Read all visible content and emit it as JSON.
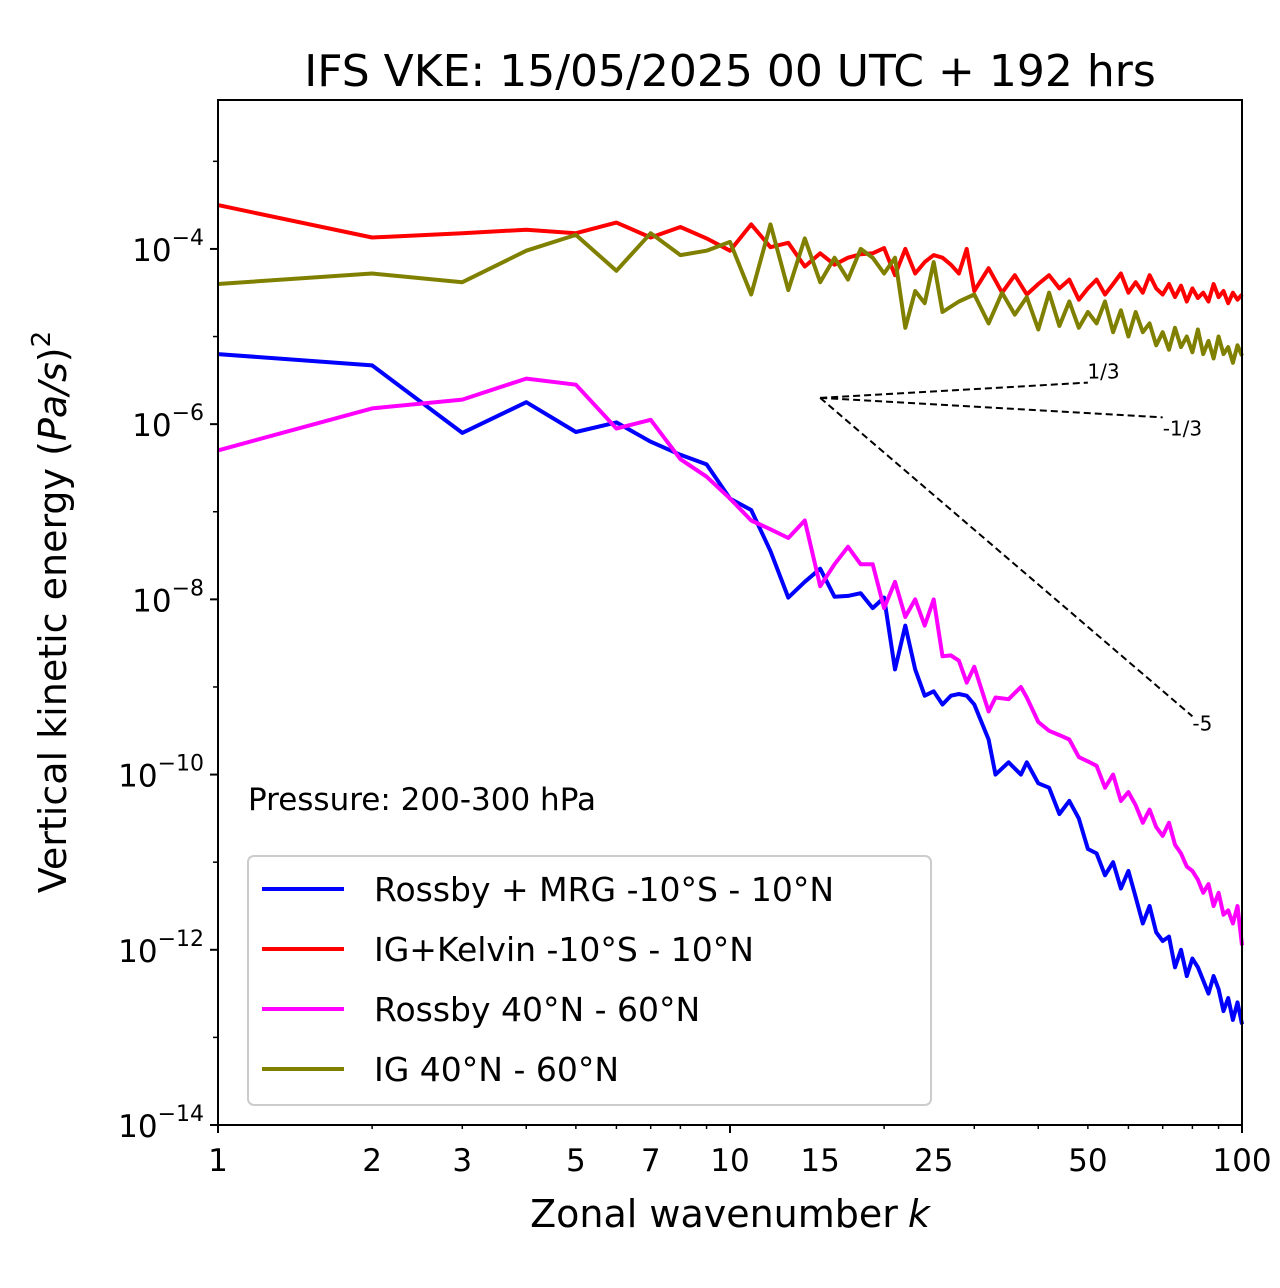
{
  "chart_data": {
    "type": "line",
    "title": "IFS VKE: 15/05/2025 00 UTC + 192 hrs",
    "xlabel": "Zonal wavenumber",
    "xlabel_italic": "k",
    "ylabel_prefix": "Vertical kinetic energy (",
    "ylabel_math": "Pa/s",
    "ylabel_suffix": ")",
    "ylabel_power": "2",
    "xscale": "log",
    "yscale": "log",
    "xlim": [
      1,
      100
    ],
    "ylim_exponent": [
      -14,
      -2.3
    ],
    "x_ticks": [
      "1",
      "2",
      "3",
      "5",
      "7",
      "10",
      "15",
      "25",
      "50",
      "100"
    ],
    "y_ticks": [
      {
        "base": "10",
        "exp": "−4"
      },
      {
        "base": "10",
        "exp": "−6"
      },
      {
        "base": "10",
        "exp": "−8"
      },
      {
        "base": "10",
        "exp": "−10"
      },
      {
        "base": "10",
        "exp": "−12"
      },
      {
        "base": "10",
        "exp": "−14"
      }
    ],
    "annotation": "Pressure: 200-300 hPa",
    "reference_slopes": [
      "1/3",
      "-1/3",
      "-5"
    ],
    "legend_position": "lower-left",
    "series": [
      {
        "name": "Rossby + MRG -10°S - 10°N",
        "color": "#0000ff",
        "points": [
          [
            1,
            -5.2
          ],
          [
            2,
            -5.33
          ],
          [
            3,
            -6.1
          ],
          [
            4,
            -5.75
          ],
          [
            5,
            -6.09
          ],
          [
            6,
            -5.98
          ],
          [
            7,
            -6.2
          ],
          [
            8,
            -6.35
          ],
          [
            9,
            -6.46
          ],
          [
            10,
            -6.85
          ],
          [
            11,
            -6.98
          ],
          [
            12,
            -7.45
          ],
          [
            13,
            -7.98
          ],
          [
            14,
            -7.8
          ],
          [
            15,
            -7.65
          ],
          [
            16,
            -7.97
          ],
          [
            17,
            -7.96
          ],
          [
            18,
            -7.93
          ],
          [
            19,
            -8.1
          ],
          [
            20,
            -7.98
          ],
          [
            21,
            -8.8
          ],
          [
            22,
            -8.3
          ],
          [
            23,
            -8.8
          ],
          [
            24,
            -9.1
          ],
          [
            25,
            -9.05
          ],
          [
            26,
            -9.2
          ],
          [
            27,
            -9.1
          ],
          [
            28,
            -9.08
          ],
          [
            29,
            -9.1
          ],
          [
            30,
            -9.2
          ],
          [
            32,
            -9.6
          ],
          [
            33,
            -10.0
          ],
          [
            35,
            -9.86
          ],
          [
            37,
            -10.0
          ],
          [
            38,
            -9.86
          ],
          [
            40,
            -10.1
          ],
          [
            42,
            -10.15
          ],
          [
            44,
            -10.45
          ],
          [
            46,
            -10.3
          ],
          [
            48,
            -10.5
          ],
          [
            50,
            -10.85
          ],
          [
            52,
            -10.9
          ],
          [
            54,
            -11.15
          ],
          [
            56,
            -11.0
          ],
          [
            58,
            -11.3
          ],
          [
            60,
            -11.1
          ],
          [
            62,
            -11.4
          ],
          [
            64,
            -11.7
          ],
          [
            66,
            -11.5
          ],
          [
            68,
            -11.8
          ],
          [
            70,
            -11.9
          ],
          [
            72,
            -11.85
          ],
          [
            74,
            -12.2
          ],
          [
            76,
            -12.0
          ],
          [
            78,
            -12.3
          ],
          [
            80,
            -12.1
          ],
          [
            82,
            -12.2
          ],
          [
            84,
            -12.35
          ],
          [
            86,
            -12.5
          ],
          [
            88,
            -12.3
          ],
          [
            90,
            -12.45
          ],
          [
            92,
            -12.7
          ],
          [
            94,
            -12.55
          ],
          [
            96,
            -12.8
          ],
          [
            98,
            -12.6
          ],
          [
            100,
            -12.85
          ]
        ]
      },
      {
        "name": "IG+Kelvin -10°S - 10°N",
        "color": "#ff0000",
        "points": [
          [
            1,
            -3.5
          ],
          [
            2,
            -3.87
          ],
          [
            3,
            -3.82
          ],
          [
            4,
            -3.78
          ],
          [
            5,
            -3.82
          ],
          [
            6,
            -3.7
          ],
          [
            7,
            -3.87
          ],
          [
            8,
            -3.75
          ],
          [
            9,
            -3.88
          ],
          [
            10,
            -4.02
          ],
          [
            11,
            -3.72
          ],
          [
            12,
            -3.98
          ],
          [
            13,
            -3.93
          ],
          [
            14,
            -4.2
          ],
          [
            15,
            -4.05
          ],
          [
            16,
            -4.18
          ],
          [
            17,
            -4.1
          ],
          [
            18,
            -4.06
          ],
          [
            19,
            -4.05
          ],
          [
            20,
            -3.99
          ],
          [
            21,
            -4.3
          ],
          [
            22,
            -4.0
          ],
          [
            23,
            -4.28
          ],
          [
            24,
            -4.15
          ],
          [
            25,
            -4.07
          ],
          [
            26,
            -4.1
          ],
          [
            27,
            -4.18
          ],
          [
            28,
            -4.28
          ],
          [
            29,
            -4.0
          ],
          [
            30,
            -4.48
          ],
          [
            32,
            -4.22
          ],
          [
            34,
            -4.5
          ],
          [
            36,
            -4.3
          ],
          [
            38,
            -4.52
          ],
          [
            40,
            -4.4
          ],
          [
            42,
            -4.3
          ],
          [
            44,
            -4.45
          ],
          [
            46,
            -4.35
          ],
          [
            48,
            -4.58
          ],
          [
            50,
            -4.45
          ],
          [
            52,
            -4.35
          ],
          [
            54,
            -4.52
          ],
          [
            56,
            -4.4
          ],
          [
            58,
            -4.28
          ],
          [
            60,
            -4.5
          ],
          [
            62,
            -4.38
          ],
          [
            64,
            -4.5
          ],
          [
            66,
            -4.3
          ],
          [
            68,
            -4.45
          ],
          [
            70,
            -4.52
          ],
          [
            72,
            -4.4
          ],
          [
            74,
            -4.55
          ],
          [
            76,
            -4.42
          ],
          [
            78,
            -4.6
          ],
          [
            80,
            -4.45
          ],
          [
            82,
            -4.56
          ],
          [
            84,
            -4.5
          ],
          [
            86,
            -4.6
          ],
          [
            88,
            -4.4
          ],
          [
            90,
            -4.55
          ],
          [
            92,
            -4.48
          ],
          [
            94,
            -4.62
          ],
          [
            96,
            -4.5
          ],
          [
            98,
            -4.58
          ],
          [
            100,
            -4.52
          ]
        ]
      },
      {
        "name": "Rossby 40°N - 60°N",
        "color": "#ff00ff",
        "points": [
          [
            1,
            -6.3
          ],
          [
            2,
            -5.82
          ],
          [
            3,
            -5.72
          ],
          [
            4,
            -5.48
          ],
          [
            5,
            -5.55
          ],
          [
            6,
            -6.05
          ],
          [
            7,
            -5.95
          ],
          [
            8,
            -6.4
          ],
          [
            9,
            -6.6
          ],
          [
            10,
            -6.85
          ],
          [
            11,
            -7.1
          ],
          [
            12,
            -7.2
          ],
          [
            13,
            -7.3
          ],
          [
            14,
            -7.1
          ],
          [
            15,
            -7.85
          ],
          [
            16,
            -7.6
          ],
          [
            17,
            -7.4
          ],
          [
            18,
            -7.6
          ],
          [
            19,
            -7.6
          ],
          [
            20,
            -8.1
          ],
          [
            21,
            -7.8
          ],
          [
            22,
            -8.2
          ],
          [
            23,
            -8.0
          ],
          [
            24,
            -8.3
          ],
          [
            25,
            -8.0
          ],
          [
            26,
            -8.65
          ],
          [
            27,
            -8.64
          ],
          [
            28,
            -8.7
          ],
          [
            29,
            -8.95
          ],
          [
            30,
            -8.77
          ],
          [
            32,
            -9.28
          ],
          [
            33,
            -9.12
          ],
          [
            35,
            -9.14
          ],
          [
            37,
            -9.0
          ],
          [
            38,
            -9.12
          ],
          [
            40,
            -9.4
          ],
          [
            42,
            -9.5
          ],
          [
            44,
            -9.55
          ],
          [
            46,
            -9.6
          ],
          [
            48,
            -9.8
          ],
          [
            50,
            -9.85
          ],
          [
            52,
            -9.9
          ],
          [
            54,
            -10.15
          ],
          [
            56,
            -10.0
          ],
          [
            58,
            -10.3
          ],
          [
            60,
            -10.2
          ],
          [
            62,
            -10.35
          ],
          [
            64,
            -10.55
          ],
          [
            66,
            -10.4
          ],
          [
            68,
            -10.6
          ],
          [
            70,
            -10.7
          ],
          [
            72,
            -10.55
          ],
          [
            74,
            -10.8
          ],
          [
            76,
            -10.9
          ],
          [
            78,
            -11.05
          ],
          [
            80,
            -11.1
          ],
          [
            82,
            -11.2
          ],
          [
            84,
            -11.35
          ],
          [
            86,
            -11.25
          ],
          [
            88,
            -11.5
          ],
          [
            90,
            -11.35
          ],
          [
            92,
            -11.6
          ],
          [
            94,
            -11.55
          ],
          [
            96,
            -11.7
          ],
          [
            98,
            -11.5
          ],
          [
            100,
            -11.95
          ]
        ]
      },
      {
        "name": "IG 40°N - 60°N",
        "color": "#808000",
        "points": [
          [
            1,
            -4.4
          ],
          [
            2,
            -4.28
          ],
          [
            3,
            -4.38
          ],
          [
            4,
            -4.02
          ],
          [
            5,
            -3.84
          ],
          [
            6,
            -4.25
          ],
          [
            7,
            -3.82
          ],
          [
            8,
            -4.07
          ],
          [
            9,
            -4.02
          ],
          [
            10,
            -3.92
          ],
          [
            11,
            -4.52
          ],
          [
            12,
            -3.72
          ],
          [
            13,
            -4.47
          ],
          [
            14,
            -3.88
          ],
          [
            15,
            -4.38
          ],
          [
            16,
            -4.1
          ],
          [
            17,
            -4.35
          ],
          [
            18,
            -4.0
          ],
          [
            19,
            -4.1
          ],
          [
            20,
            -4.28
          ],
          [
            21,
            -4.1
          ],
          [
            22,
            -4.9
          ],
          [
            23,
            -4.48
          ],
          [
            24,
            -4.62
          ],
          [
            25,
            -4.15
          ],
          [
            26,
            -4.72
          ],
          [
            28,
            -4.6
          ],
          [
            30,
            -4.52
          ],
          [
            32,
            -4.85
          ],
          [
            34,
            -4.5
          ],
          [
            36,
            -4.75
          ],
          [
            38,
            -4.55
          ],
          [
            40,
            -4.92
          ],
          [
            42,
            -4.5
          ],
          [
            44,
            -4.88
          ],
          [
            46,
            -4.6
          ],
          [
            48,
            -4.9
          ],
          [
            50,
            -4.72
          ],
          [
            52,
            -4.85
          ],
          [
            54,
            -4.6
          ],
          [
            56,
            -4.95
          ],
          [
            58,
            -4.7
          ],
          [
            60,
            -5.0
          ],
          [
            62,
            -4.72
          ],
          [
            64,
            -4.95
          ],
          [
            66,
            -4.85
          ],
          [
            68,
            -5.1
          ],
          [
            70,
            -4.95
          ],
          [
            72,
            -5.15
          ],
          [
            74,
            -4.9
          ],
          [
            76,
            -5.12
          ],
          [
            78,
            -5.0
          ],
          [
            80,
            -5.18
          ],
          [
            82,
            -4.92
          ],
          [
            84,
            -5.2
          ],
          [
            86,
            -5.05
          ],
          [
            88,
            -5.25
          ],
          [
            90,
            -5.0
          ],
          [
            92,
            -5.2
          ],
          [
            94,
            -5.12
          ],
          [
            96,
            -5.3
          ],
          [
            98,
            -5.1
          ],
          [
            100,
            -5.22
          ]
        ]
      }
    ]
  }
}
